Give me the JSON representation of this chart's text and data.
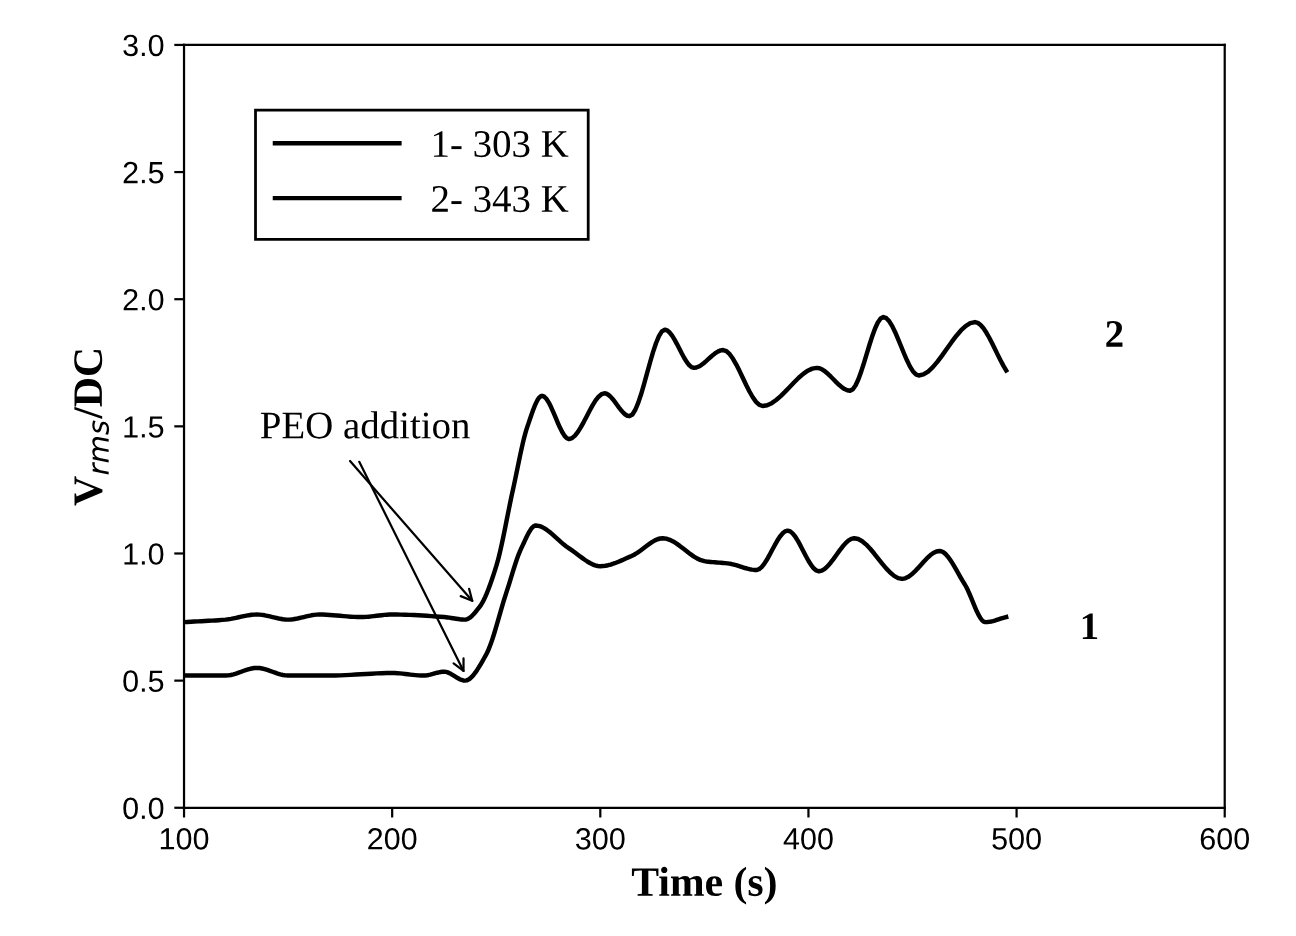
{
  "chart_data": {
    "type": "line",
    "xlabel": "Time (s)",
    "ylabel": "V$_{rms}$/DC",
    "xlim": [
      100,
      600
    ],
    "ylim": [
      0,
      3.0
    ],
    "xticks": [
      100,
      200,
      300,
      400,
      500,
      600
    ],
    "yticks": [
      {
        "value": 0,
        "label": "0.0"
      },
      0.5,
      {
        "value": 1,
        "label": "1.0"
      },
      1.5,
      {
        "value": 2,
        "label": "2.0"
      },
      2.5,
      {
        "value": 3,
        "label": "3.0"
      }
    ],
    "grid": false,
    "legend": "top left",
    "marker": "none",
    "line_style": "solid",
    "series": [
      {
        "name": "1- 303 K",
        "color": "#000000",
        "x": [
          100,
          120,
          135,
          150,
          170,
          200,
          215,
          225,
          235,
          245,
          255,
          262,
          269,
          285,
          300,
          315,
          330,
          350,
          362,
          375,
          390,
          405,
          422,
          445,
          463,
          475,
          485,
          495
        ],
        "values": [
          0.52,
          0.52,
          0.55,
          0.52,
          0.52,
          0.53,
          0.52,
          0.535,
          0.5,
          0.6,
          0.85,
          1.02,
          1.11,
          1.02,
          0.95,
          0.99,
          1.06,
          0.97,
          0.96,
          0.935,
          1.09,
          0.93,
          1.06,
          0.9,
          1.01,
          0.88,
          0.73,
          0.75
        ]
      },
      {
        "name": "2- 343 K",
        "color": "#000000",
        "x": [
          100,
          120,
          135,
          150,
          165,
          185,
          200,
          225,
          235,
          242,
          250,
          258,
          265,
          272,
          285,
          302,
          314,
          331,
          345,
          359,
          378,
          404,
          420,
          436,
          453,
          480,
          495
        ],
        "values": [
          0.73,
          0.74,
          0.76,
          0.74,
          0.76,
          0.75,
          0.76,
          0.75,
          0.74,
          0.79,
          0.95,
          1.25,
          1.5,
          1.62,
          1.45,
          1.63,
          1.54,
          1.88,
          1.73,
          1.8,
          1.58,
          1.73,
          1.64,
          1.93,
          1.7,
          1.91,
          1.72
        ]
      }
    ],
    "annotations": [
      {
        "text": "PEO addition",
        "x": 241,
        "y": 0.79
      },
      "1",
      "2"
    ]
  }
}
